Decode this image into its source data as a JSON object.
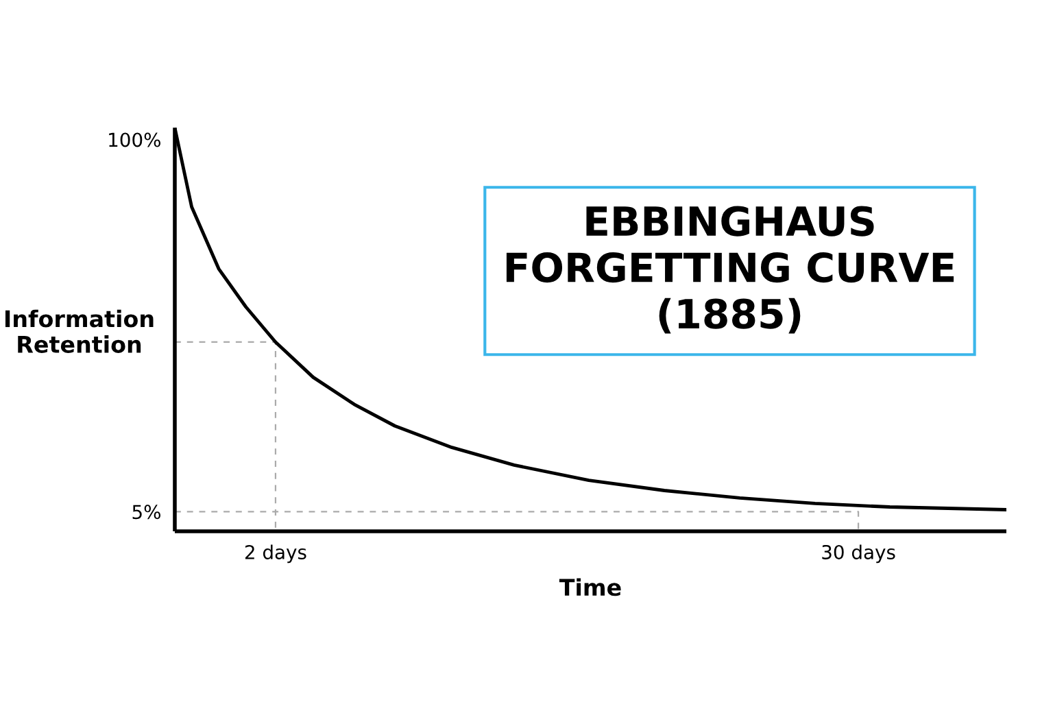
{
  "chart_data": {
    "type": "line",
    "title": "EBBINGHAUS\nFORGETTING CURVE\n(1885)",
    "xlabel": "Time",
    "ylabel": "Information\nRetention",
    "xlim": [
      -2.84,
      37.11
    ],
    "ylim": [
      0,
      103
    ],
    "xticks": [
      {
        "value": 2,
        "label": "2 days"
      },
      {
        "value": 30,
        "label": "30 days"
      }
    ],
    "yticks": [
      {
        "value": 5,
        "label": "5%"
      },
      {
        "value": 100,
        "label": "100%"
      }
    ],
    "grid": false,
    "legend": false,
    "marker": "none",
    "series": [
      {
        "color": "#000000",
        "line_style": "solid",
        "x": [
          -2.82,
          -2.03,
          -0.73,
          0.57,
          2,
          3.81,
          5.78,
          7.73,
          10.47,
          13.46,
          17.05,
          20.68,
          24.3,
          27.92,
          31.51,
          37.11
        ],
        "values": [
          102.5,
          82.8,
          67.0,
          57.3,
          48.3,
          39.3,
          32.4,
          26.9,
          21.4,
          16.9,
          13.0,
          10.4,
          8.5,
          7.1,
          6.2,
          5.5
        ]
      },
      {
        "color": "#aaaaaa",
        "line_style": "dashed",
        "x": [
          -2.84,
          2,
          2
        ],
        "values": [
          48.3,
          48.3,
          0
        ]
      },
      {
        "color": "#aaaaaa",
        "line_style": "dashed",
        "x": [
          -2.84,
          30,
          30
        ],
        "values": [
          5,
          5,
          0
        ]
      }
    ]
  }
}
